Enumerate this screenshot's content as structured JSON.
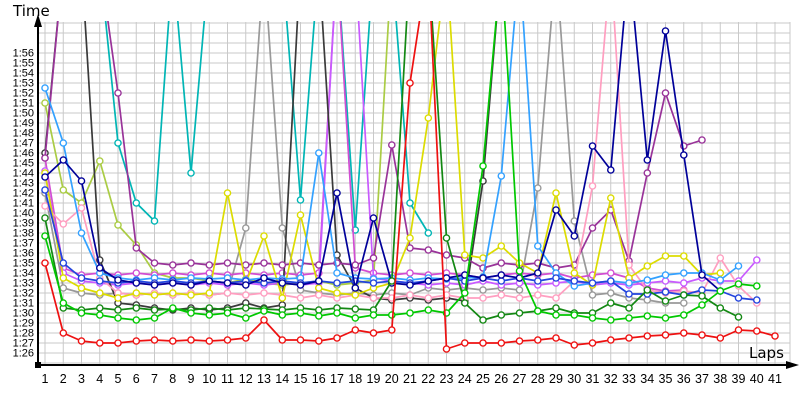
{
  "chart_data": {
    "type": "line",
    "y_label": "Time",
    "x_label": "Laps",
    "x_ticks": [
      1,
      2,
      3,
      4,
      5,
      6,
      7,
      8,
      9,
      10,
      11,
      12,
      13,
      14,
      15,
      16,
      17,
      18,
      19,
      20,
      21,
      22,
      23,
      24,
      25,
      26,
      27,
      28,
      29,
      30,
      31,
      32,
      33,
      34,
      35,
      36,
      37,
      38,
      39,
      40,
      41
    ],
    "y_tick_labels": [
      "1:26",
      "1:27",
      "1:28",
      "1:29",
      "1:30",
      "1:31",
      "1:32",
      "1:33",
      "1:34",
      "1:35",
      "1:36",
      "1:37",
      "1:38",
      "1:39",
      "1:40",
      "1:41",
      "1:42",
      "1:43",
      "1:44",
      "1:45",
      "1:46",
      "1:47",
      "1:48",
      "1:49",
      "1:50",
      "1:51",
      "1:52",
      "1:53",
      "1:54",
      "1:55",
      "1:56"
    ],
    "y_base_seconds": 86,
    "off_scale_value": 125,
    "grid_color": "#c9c9c9",
    "axis_color": "#000000",
    "series": [
      {
        "name": "yellowgreen",
        "color": "#aacc44",
        "values": [
          111,
          102.3,
          101,
          105.2,
          98.8,
          96.8,
          94,
          93.5,
          93.5,
          93.2,
          93,
          93.4,
          93,
          92.8,
          93,
          93.2,
          92.8,
          93,
          93.3,
          125,
          null,
          null,
          null,
          null,
          null,
          null,
          null,
          null,
          null,
          null,
          null,
          null,
          null,
          null,
          null,
          null,
          null,
          null,
          null,
          null,
          null
        ]
      },
      {
        "name": "teal",
        "color": "#00b5b5",
        "values": [
          125,
          125,
          125,
          125,
          107,
          101,
          99.2,
          125,
          104,
          125,
          125,
          125,
          125,
          125,
          101.3,
          125,
          125,
          98.3,
          125,
          125,
          101,
          98,
          null,
          null,
          null,
          null,
          null,
          null,
          null,
          null,
          null,
          null,
          null,
          null,
          null,
          null,
          null,
          null,
          null,
          null,
          null
        ]
      },
      {
        "name": "gray",
        "color": "#999999",
        "values": [
          102,
          92.5,
          92,
          91.8,
          92,
          91.8,
          92,
          91.8,
          92,
          91.8,
          92,
          98.5,
          125,
          98.5,
          92.3,
          92,
          91.8,
          92,
          91.8,
          92,
          91.8,
          92.5,
          92.3,
          92.5,
          92.3,
          92.5,
          92.3,
          102.5,
          125,
          99.2,
          91.8,
          92,
          91.5,
          91.3,
          91,
          91,
          null,
          null,
          null,
          null,
          null
        ]
      },
      {
        "name": "magenta",
        "color": "#d24dd2",
        "values": [
          105.5,
          94.5,
          93.8,
          94,
          93.8,
          94,
          93.8,
          94,
          93.8,
          94,
          93.8,
          94,
          93.8,
          94,
          93.8,
          94,
          125,
          94.5,
          94,
          93.8,
          94,
          93.8,
          94,
          93.8,
          93.5,
          93.8,
          94,
          93.8,
          94,
          93.5,
          93.8,
          94,
          93.5,
          92.5,
          92.2,
          92.3,
          null,
          null,
          null,
          null,
          null
        ]
      },
      {
        "name": "orchid",
        "color": "#c85aff",
        "values": [
          104.2,
          94,
          93.2,
          93,
          92.8,
          93,
          92.8,
          93,
          92.8,
          93,
          92.8,
          93,
          92.8,
          93,
          92.8,
          93,
          125,
          125,
          93.5,
          93.2,
          93,
          92.8,
          93,
          92.8,
          93.2,
          92.8,
          93,
          92.8,
          93,
          93.2,
          92.8,
          93,
          92.8,
          93,
          93.2,
          93,
          93.5,
          93.2,
          93.2,
          95.3,
          null
        ]
      },
      {
        "name": "black",
        "color": "#3a3a3a",
        "values": [
          106,
          125,
          125,
          95.3,
          91,
          90.8,
          90.5,
          90.3,
          90.5,
          90.3,
          90.5,
          91,
          90.5,
          90.8,
          125,
          125,
          95.8,
          92.5,
          91.5,
          91.3,
          91.5,
          91.3,
          91.5,
          91.2,
          103.2,
          125,
          null,
          null,
          null,
          null,
          null,
          null,
          null,
          null,
          null,
          null,
          null,
          null,
          null,
          null,
          null
        ]
      },
      {
        "name": "purple",
        "color": "#993399",
        "values": [
          105.5,
          125,
          125,
          125,
          112,
          96.5,
          95,
          94.8,
          95,
          94.8,
          95,
          94.8,
          95,
          94.8,
          95,
          94.8,
          95,
          94.8,
          95.5,
          106.8,
          96.5,
          96.3,
          95.8,
          95.5,
          94.5,
          95,
          94.8,
          95,
          94.5,
          94.8,
          98.5,
          100.3,
          95.2,
          104,
          112,
          106.7,
          107.3,
          null,
          null,
          null,
          null
        ]
      },
      {
        "name": "pink",
        "color": "#ff9ec0",
        "values": [
          100.7,
          98.9,
          100.5,
          93.5,
          92,
          91.8,
          92,
          91.8,
          92,
          91.8,
          92,
          91.8,
          92,
          91.8,
          91.5,
          91.8,
          91.5,
          91.8,
          91.5,
          91.5,
          91.8,
          91.5,
          91.8,
          91.5,
          91.5,
          91.8,
          91.5,
          91.8,
          91.5,
          93.2,
          102.7,
          125,
          94.8,
          92.3,
          92,
          92.2,
          92,
          95.5,
          92.7,
          91,
          null
        ]
      },
      {
        "name": "yellow",
        "color": "#dcdc00",
        "values": [
          104,
          93.5,
          92.5,
          92,
          91.5,
          92,
          91.8,
          92,
          91.8,
          92,
          102,
          93,
          97.7,
          91.5,
          99.8,
          92.5,
          92,
          91.8,
          92.5,
          93,
          97.5,
          109.5,
          125,
          95.8,
          95.5,
          96.7,
          95,
          94,
          102,
          94,
          92.8,
          101.5,
          93.5,
          94.7,
          95.7,
          95.7,
          93.8,
          94,
          null,
          null,
          null
        ]
      },
      {
        "name": "dodgerblue",
        "color": "#33a1ff",
        "values": [
          112.5,
          107,
          98,
          94,
          93.5,
          93.3,
          93.5,
          93.3,
          93.5,
          93.4,
          93.5,
          93.3,
          93.5,
          93.4,
          93.5,
          106,
          94,
          93.5,
          93.4,
          93.5,
          93.3,
          93.5,
          93.4,
          93.5,
          93.6,
          103.7,
          125,
          96.7,
          94,
          92.7,
          93,
          93.2,
          93,
          93.3,
          93.8,
          94,
          94,
          93.3,
          94.7,
          null,
          null
        ]
      },
      {
        "name": "blue",
        "color": "#2244dd",
        "values": [
          102.3,
          95,
          93.5,
          93.2,
          93,
          93.2,
          93,
          93.2,
          93,
          93.2,
          93,
          93.2,
          93,
          93.2,
          93,
          93.2,
          93,
          93.2,
          93,
          93.2,
          93,
          93.2,
          93.5,
          93.2,
          93.5,
          93.2,
          93.5,
          93.2,
          93.5,
          93.2,
          93,
          93.2,
          91.9,
          91.9,
          92.1,
          91.8,
          92.3,
          92.2,
          91.5,
          91.3,
          null
        ]
      },
      {
        "name": "navy",
        "color": "#000099",
        "values": [
          103.6,
          105.3,
          103.2,
          94.5,
          93.3,
          93,
          92.8,
          93,
          92.8,
          93.2,
          93,
          92.8,
          93.5,
          93,
          92.8,
          93.2,
          102,
          92.5,
          99.5,
          93,
          92.8,
          93.2,
          93.5,
          93.8,
          93.5,
          93.8,
          93.5,
          94,
          100.3,
          97.7,
          106.7,
          104.3,
          125,
          105.3,
          118.2,
          105.8,
          93.8,
          92.2,
          null,
          null,
          null
        ]
      },
      {
        "name": "darkgreen",
        "color": "#138813",
        "values": [
          99.5,
          90.5,
          90.3,
          90.5,
          90.3,
          90.5,
          90.3,
          90.4,
          90.3,
          90.5,
          90.3,
          90.5,
          90.4,
          90.3,
          90.5,
          90.3,
          90.5,
          90.4,
          90.3,
          93.2,
          125,
          125,
          97.5,
          91,
          89.3,
          89.8,
          90,
          90.2,
          90.5,
          90,
          90,
          91,
          90.5,
          92.3,
          91.2,
          91.8,
          91.7,
          90.5,
          89.6,
          null,
          null
        ]
      },
      {
        "name": "green",
        "color": "#00c800",
        "values": [
          97.7,
          91,
          90,
          89.8,
          89.5,
          89.3,
          89.5,
          90.5,
          90,
          89.8,
          90,
          89.5,
          90.2,
          89.8,
          90,
          89.7,
          90,
          89.5,
          89.8,
          89.8,
          90,
          90.3,
          90,
          92,
          104.7,
          125,
          94.2,
          90.2,
          89.8,
          89.8,
          89.5,
          89.3,
          89.5,
          89.7,
          89.5,
          89.8,
          90.8,
          92.2,
          92.9,
          92.7,
          null
        ]
      },
      {
        "name": "red",
        "color": "#ee1111",
        "values": [
          95,
          88,
          87.2,
          87,
          87,
          87.2,
          87.3,
          87.2,
          87.3,
          87.2,
          87.3,
          87.5,
          89.3,
          87.3,
          87.3,
          87.2,
          87.5,
          88.3,
          88,
          88.3,
          113,
          125,
          86.4,
          87,
          87,
          87,
          87.2,
          87.3,
          87.5,
          86.8,
          87,
          87.3,
          87.5,
          87.7,
          87.8,
          88,
          87.8,
          87.5,
          88.3,
          88.2,
          87.7
        ]
      }
    ]
  }
}
